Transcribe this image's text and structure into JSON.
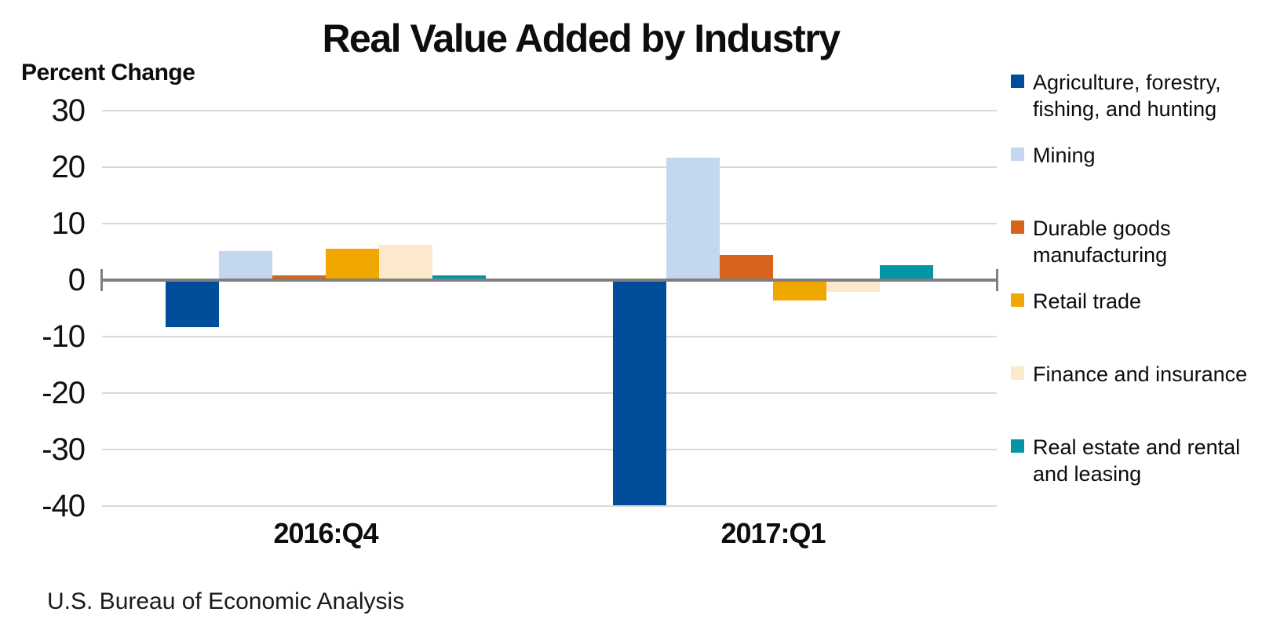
{
  "header": {
    "title": "Real Value Added by Industry"
  },
  "footer": {
    "source_note": "U.S. Bureau of Economic Analysis"
  },
  "colors": {
    "gridline": "#d9d9d9",
    "axis": "#7f7f7f",
    "text": "#0d0d0d"
  },
  "chart_data": {
    "type": "bar",
    "title": "Real Value Added by Industry",
    "ylabel": "Percent Change",
    "xlabel": "",
    "categories": [
      "2016:Q4",
      "2017:Q1"
    ],
    "series": [
      {
        "name": "Agriculture, forestry, fishing, and hunting",
        "color": "#004d9a",
        "values": [
          -8.3,
          -39.9
        ]
      },
      {
        "name": "Mining",
        "color": "#c3d7ee",
        "values": [
          5.2,
          21.6
        ]
      },
      {
        "name": "Durable goods manufacturing",
        "color": "#d8631d",
        "values": [
          0.8,
          4.4
        ]
      },
      {
        "name": "Retail trade",
        "color": "#f0a800",
        "values": [
          5.6,
          -3.6
        ]
      },
      {
        "name": "Finance and insurance",
        "color": "#fce8ca",
        "values": [
          6.3,
          -2.1
        ]
      },
      {
        "name": "Real estate and rental and leasing",
        "color": "#0295a6",
        "values": [
          0.9,
          2.7
        ]
      }
    ],
    "ylim": [
      -40,
      30
    ],
    "yticks": [
      30,
      20,
      10,
      0,
      -10,
      -20,
      -30,
      -40
    ],
    "grid": true,
    "legend_position": "right"
  }
}
